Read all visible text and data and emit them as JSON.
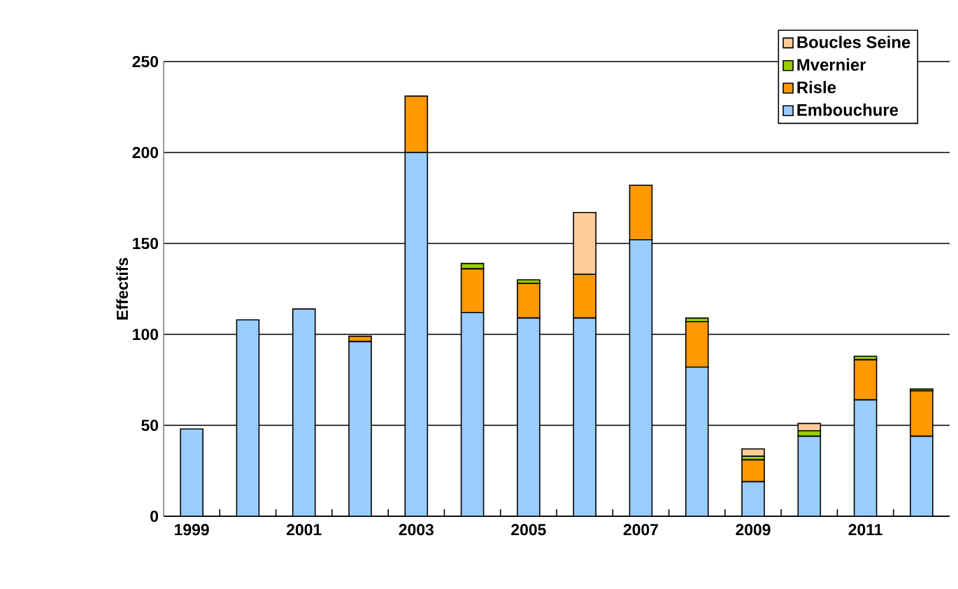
{
  "chart_data": {
    "type": "bar",
    "stacked": true,
    "ylabel": "Effectifs",
    "categories": [
      "1999",
      null,
      "2001",
      null,
      "2003",
      null,
      "2005",
      null,
      "2007",
      null,
      "2009",
      null,
      "2011",
      null
    ],
    "series": [
      {
        "name": "Embouchure",
        "color": "#99ccff",
        "values": [
          48,
          108,
          114,
          96,
          200,
          112,
          109,
          109,
          152,
          82,
          19,
          44,
          64,
          44
        ]
      },
      {
        "name": "Risle",
        "color": "#ff9900",
        "values": [
          0,
          0,
          0,
          3,
          31,
          24,
          19,
          24,
          30,
          25,
          12,
          0,
          22,
          25
        ]
      },
      {
        "name": "Mvernier",
        "color": "#99cc00",
        "values": [
          null,
          0,
          0,
          0,
          0,
          3,
          2,
          0,
          0,
          2,
          2,
          3,
          2,
          1
        ]
      },
      {
        "name": "Boucles Seine",
        "color": "#ffcc99",
        "values": [
          0,
          0,
          0,
          0,
          0,
          0,
          0,
          34,
          0,
          0,
          4,
          4,
          0,
          0
        ]
      }
    ],
    "ylim": [
      0,
      250
    ],
    "yticks": [
      0,
      50,
      100,
      150,
      200,
      250
    ],
    "grid": "y",
    "legend": "top right"
  }
}
